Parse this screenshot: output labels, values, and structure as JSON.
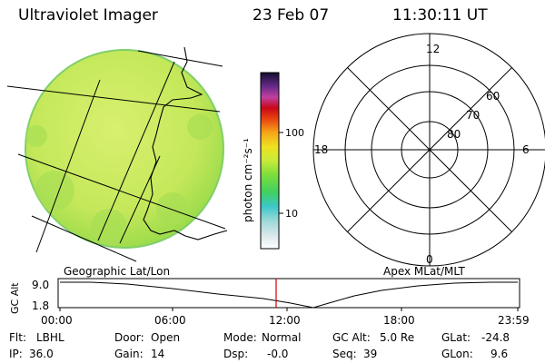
{
  "header": {
    "title": "Ultraviolet Imager",
    "date": "23 Feb 07",
    "time": "11:30:11 UT"
  },
  "colorbar": {
    "unit_label": "photon cm⁻²s⁻¹",
    "tick_100": "100",
    "tick_10": "10"
  },
  "polar_plot": {
    "hour_top": "12",
    "hour_left": "18",
    "hour_right": "6",
    "hour_bottom": "0",
    "lat_60": "60",
    "lat_70": "70",
    "lat_80": "80"
  },
  "captions": {
    "left": "Geographic Lat/Lon",
    "right": "Apex MLat/MLT"
  },
  "altitude_plot": {
    "axis_label": "GC Alt",
    "y_high": "9.0",
    "y_low": "1.8",
    "x_ticks": [
      "00:00",
      "06:00",
      "12:00",
      "18:00",
      "23:59"
    ],
    "current_time_marker_color": "#cc0000"
  },
  "info": {
    "row1": [
      {
        "label": "Flt:",
        "value": "LBHL"
      },
      {
        "label": "Door:",
        "value": "Open"
      },
      {
        "label": "Mode:",
        "value": "Normal"
      },
      {
        "label": "GC Alt:",
        "value": "5.0 Re"
      },
      {
        "label": "GLat:",
        "value": "-24.8"
      }
    ],
    "row2": [
      {
        "label": "IP:",
        "value": "36.0"
      },
      {
        "label": "Gain:",
        "value": "14"
      },
      {
        "label": "Dsp:",
        "value": "-0.0"
      },
      {
        "label": "Seq:",
        "value": "39"
      },
      {
        "label": "GLon:",
        "value": "9.6"
      }
    ]
  },
  "colors": {
    "disk_fill": "#c8ea5c",
    "grid": "#000000",
    "time_marker": "#cc0000"
  }
}
